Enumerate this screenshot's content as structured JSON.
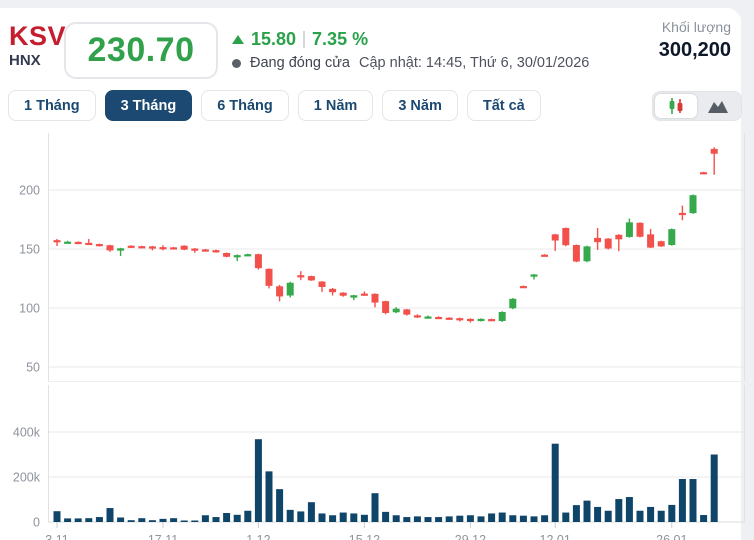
{
  "header": {
    "symbol": "KSV",
    "exchange": "HNX",
    "price": "230.70",
    "change": "15.80",
    "change_pct": "7.35 %",
    "status": "Đang đóng cửa",
    "updated": "Cập nhật: 14:45, Thứ 6, 30/01/2026",
    "volume_label": "Khối lượng",
    "volume_value": "300,200"
  },
  "tabs": [
    {
      "label": "1 Tháng",
      "active": false
    },
    {
      "label": "3 Tháng",
      "active": true
    },
    {
      "label": "6 Tháng",
      "active": false
    },
    {
      "label": "1 Năm",
      "active": false
    },
    {
      "label": "3 Năm",
      "active": false
    },
    {
      "label": "Tất cả",
      "active": false
    }
  ],
  "chart_toggle": {
    "candlestick_selected": true,
    "area_selected": false
  },
  "colors": {
    "brand_red": "#c41e2f",
    "price_green": "#31a24b",
    "navy": "#1b4971",
    "up": "#35a94b",
    "down": "#f2504b",
    "volume_bar": "#10456a",
    "grid": "#e8eaed",
    "axis_text": "#8e939c"
  },
  "chart_data": {
    "type": "candlestick",
    "panels": [
      "price",
      "volume"
    ],
    "title": "",
    "price_axis_ticks": [
      200,
      150,
      100,
      50
    ],
    "volume_axis_ticks": [
      {
        "label": "400k",
        "value_k": 400
      },
      {
        "label": "200k",
        "value_k": 200
      },
      {
        "label": "0",
        "value_k": 0
      }
    ],
    "x_labels": [
      "3.11",
      "17.11",
      "1.12",
      "15.12",
      "29.12",
      "12.01",
      "26.01"
    ],
    "x_label_indices": [
      0,
      10,
      19,
      29,
      39,
      47,
      58
    ],
    "candles_ohlc": [
      [
        157.5,
        158.5,
        152.5,
        156.5
      ],
      [
        155.8,
        157.0,
        155.0,
        156.2
      ],
      [
        156.0,
        156.5,
        154.2,
        154.8
      ],
      [
        155.2,
        158.5,
        154.2,
        154.4
      ],
      [
        154.2,
        154.6,
        152.2,
        152.6
      ],
      [
        153.2,
        153.6,
        147.6,
        148.8
      ],
      [
        148.6,
        151.0,
        144.0,
        150.6
      ],
      [
        152.8,
        153.2,
        150.8,
        151.2
      ],
      [
        152.4,
        152.8,
        151.0,
        151.4
      ],
      [
        152.2,
        152.6,
        148.8,
        151.2
      ],
      [
        151.6,
        153.2,
        148.8,
        150.8
      ],
      [
        151.4,
        151.8,
        150.2,
        150.6
      ],
      [
        152.8,
        153.2,
        149.0,
        149.4
      ],
      [
        150.4,
        150.8,
        146.8,
        149.4
      ],
      [
        149.6,
        150.0,
        147.8,
        148.2
      ],
      [
        149.0,
        149.4,
        146.8,
        147.2
      ],
      [
        146.6,
        147.0,
        143.0,
        143.4
      ],
      [
        143.2,
        145.4,
        139.8,
        144.8
      ],
      [
        144.4,
        146.0,
        143.8,
        145.6
      ],
      [
        145.6,
        146.0,
        132.6,
        133.8
      ],
      [
        133.2,
        133.6,
        116.6,
        118.8
      ],
      [
        118.4,
        119.6,
        105.6,
        109.8
      ],
      [
        110.6,
        122.2,
        109.0,
        121.4
      ],
      [
        127.8,
        131.2,
        123.6,
        126.4
      ],
      [
        127.0,
        127.4,
        123.0,
        123.4
      ],
      [
        122.4,
        122.8,
        113.6,
        117.8
      ],
      [
        116.2,
        117.0,
        110.6,
        113.4
      ],
      [
        113.0,
        113.4,
        109.6,
        110.4
      ],
      [
        108.8,
        111.2,
        106.6,
        110.8
      ],
      [
        112.2,
        114.0,
        110.4,
        111.2
      ],
      [
        112.0,
        112.4,
        100.6,
        104.6
      ],
      [
        105.8,
        106.2,
        94.6,
        95.8
      ],
      [
        96.4,
        100.8,
        95.6,
        99.4
      ],
      [
        98.8,
        99.2,
        93.6,
        94.4
      ],
      [
        93.8,
        94.6,
        91.6,
        92.4
      ],
      [
        91.8,
        93.6,
        91.0,
        92.8
      ],
      [
        92.4,
        93.0,
        91.0,
        91.6
      ],
      [
        91.8,
        92.2,
        90.4,
        90.8
      ],
      [
        91.4,
        91.8,
        88.6,
        90.4
      ],
      [
        90.8,
        91.2,
        87.6,
        89.8
      ],
      [
        89.4,
        91.2,
        88.6,
        90.8
      ],
      [
        90.6,
        91.0,
        89.6,
        89.8
      ],
      [
        89.0,
        97.2,
        88.2,
        96.6
      ],
      [
        99.8,
        108.4,
        99.0,
        107.8
      ],
      [
        118.6,
        119.0,
        118.0,
        118.4
      ],
      [
        128.2,
        128.8,
        124.2,
        128.4
      ],
      [
        145.2,
        145.6,
        144.8,
        145.0
      ],
      [
        162.4,
        162.8,
        148.4,
        157.2
      ],
      [
        167.8,
        168.2,
        152.4,
        153.2
      ],
      [
        153.4,
        153.8,
        138.8,
        139.4
      ],
      [
        139.6,
        152.8,
        138.8,
        152.2
      ],
      [
        159.4,
        167.8,
        149.2,
        155.8
      ],
      [
        158.8,
        159.2,
        149.6,
        150.4
      ],
      [
        162.0,
        162.6,
        148.2,
        158.2
      ],
      [
        160.2,
        175.8,
        159.6,
        172.6
      ],
      [
        172.2,
        172.6,
        159.8,
        160.4
      ],
      [
        162.4,
        167.0,
        150.8,
        151.2
      ],
      [
        156.6,
        157.0,
        151.8,
        152.2
      ],
      [
        153.4,
        167.4,
        152.8,
        166.8
      ],
      [
        180.6,
        186.8,
        174.4,
        179.6
      ],
      [
        180.4,
        196.2,
        179.8,
        195.6
      ],
      [
        215.1,
        215.4,
        214.5,
        214.9
      ],
      [
        234.8,
        236.2,
        212.9,
        230.7
      ]
    ],
    "volumes_k": [
      48,
      16,
      16,
      17,
      22,
      62,
      20,
      8,
      17,
      8,
      14,
      17,
      5,
      3,
      30,
      22,
      40,
      32,
      50,
      368,
      225,
      146,
      54,
      47,
      88,
      38,
      30,
      42,
      38,
      32,
      128,
      45,
      30,
      22,
      25,
      22,
      22,
      25,
      28,
      30,
      25,
      38,
      42,
      30,
      28,
      25,
      30,
      348,
      42,
      75,
      95,
      67,
      50,
      102,
      111,
      50,
      67,
      50,
      76,
      191,
      191,
      31,
      300
    ]
  }
}
